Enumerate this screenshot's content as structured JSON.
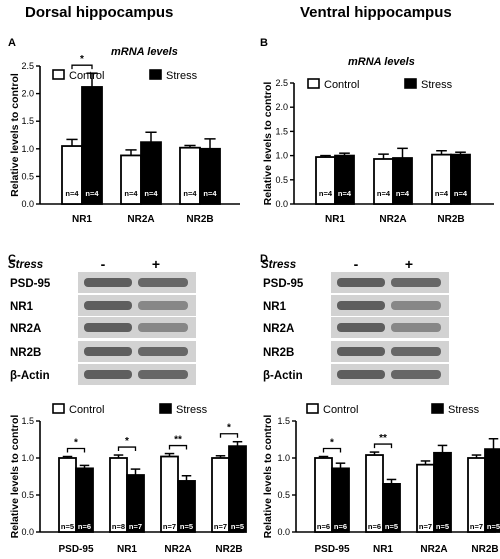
{
  "titles": {
    "dorsal": "Dorsal hippocampus",
    "ventral": "Ventral hippocampus"
  },
  "legend": {
    "control": "Control",
    "stress": "Stress"
  },
  "colors": {
    "control": "#ffffff",
    "stress": "#000000"
  },
  "stress_row_label": "Stress",
  "minus_sign": "-",
  "plus_sign": "+",
  "blots": {
    "C": {
      "labels": [
        "PSD-95",
        "NR1",
        "NR2A",
        "NR2B",
        "β-Actin"
      ]
    },
    "D": {
      "labels": [
        "PSD-95",
        "NR1",
        "NR2A",
        "NR2B",
        "β-Actin"
      ]
    }
  },
  "chart_data": [
    {
      "panel": "A",
      "type": "bar",
      "subtitle": "mRNA levels",
      "ylabel": "Relative levels to control",
      "ylim": [
        0,
        2.5
      ],
      "yticks": [
        "0.0",
        "0.5",
        "1.0",
        "1.5",
        "2.0",
        "2.5"
      ],
      "categories": [
        "NR1",
        "NR2A",
        "NR2B"
      ],
      "series": [
        {
          "name": "Control",
          "values": [
            1.05,
            0.88,
            1.02
          ],
          "errors": [
            0.12,
            0.1,
            0.04
          ],
          "n": [
            "n=4",
            "n=4",
            "n=4"
          ]
        },
        {
          "name": "Stress",
          "values": [
            2.12,
            1.12,
            1.0
          ],
          "errors": [
            0.25,
            0.18,
            0.18
          ],
          "n": [
            "n=4",
            "n=4",
            "n=4"
          ]
        }
      ],
      "significance": [
        {
          "category": 0,
          "label": "*"
        }
      ]
    },
    {
      "panel": "B",
      "type": "bar",
      "subtitle": "mRNA levels",
      "ylabel": "Relative levels to control",
      "ylim": [
        0,
        2.5
      ],
      "yticks": [
        "0.0",
        "0.5",
        "1.0",
        "1.5",
        "2.0",
        "2.5"
      ],
      "categories": [
        "NR1",
        "NR2A",
        "NR2B"
      ],
      "series": [
        {
          "name": "Control",
          "values": [
            0.97,
            0.93,
            1.02
          ],
          "errors": [
            0.03,
            0.1,
            0.08
          ],
          "n": [
            "n=4",
            "n=4",
            "n=4"
          ]
        },
        {
          "name": "Stress",
          "values": [
            1.0,
            0.95,
            1.02
          ],
          "errors": [
            0.05,
            0.2,
            0.05
          ],
          "n": [
            "n=4",
            "n=4",
            "n=4"
          ]
        }
      ],
      "significance": []
    },
    {
      "panel": "C",
      "type": "bar",
      "ylabel": "Relative levels to control",
      "ylim": [
        0,
        1.5
      ],
      "yticks": [
        "0.0",
        "0.5",
        "1.0",
        "1.5"
      ],
      "categories": [
        "PSD-95",
        "NR1",
        "NR2A",
        "NR2B"
      ],
      "series": [
        {
          "name": "Control",
          "values": [
            1.0,
            1.0,
            1.02,
            1.0
          ],
          "errors": [
            0.02,
            0.04,
            0.04,
            0.03
          ],
          "n": [
            "n=5",
            "n=8",
            "n=7",
            "n=7"
          ]
        },
        {
          "name": "Stress",
          "values": [
            0.86,
            0.77,
            0.69,
            1.16
          ],
          "errors": [
            0.04,
            0.08,
            0.07,
            0.06
          ],
          "n": [
            "n=6",
            "n=7",
            "n=5",
            "n=5"
          ]
        }
      ],
      "significance": [
        {
          "category": 0,
          "label": "*"
        },
        {
          "category": 1,
          "label": "*"
        },
        {
          "category": 2,
          "label": "**"
        },
        {
          "category": 3,
          "label": "*"
        }
      ]
    },
    {
      "panel": "D",
      "type": "bar",
      "ylabel": "Relative levels to control",
      "ylim": [
        0,
        1.5
      ],
      "yticks": [
        "0.0",
        "0.5",
        "1.0",
        "1.5"
      ],
      "categories": [
        "PSD-95",
        "NR1",
        "NR2A",
        "NR2B"
      ],
      "series": [
        {
          "name": "Control",
          "values": [
            1.0,
            1.04,
            0.91,
            1.0
          ],
          "errors": [
            0.02,
            0.04,
            0.05,
            0.04
          ],
          "n": [
            "n=6",
            "n=6",
            "n=7",
            "n=7"
          ]
        },
        {
          "name": "Stress",
          "values": [
            0.86,
            0.65,
            1.07,
            1.12
          ],
          "errors": [
            0.07,
            0.06,
            0.1,
            0.14
          ],
          "n": [
            "n=6",
            "n=5",
            "n=5",
            "n=5"
          ]
        }
      ],
      "significance": [
        {
          "category": 0,
          "label": "*"
        },
        {
          "category": 1,
          "label": "**"
        }
      ]
    }
  ]
}
